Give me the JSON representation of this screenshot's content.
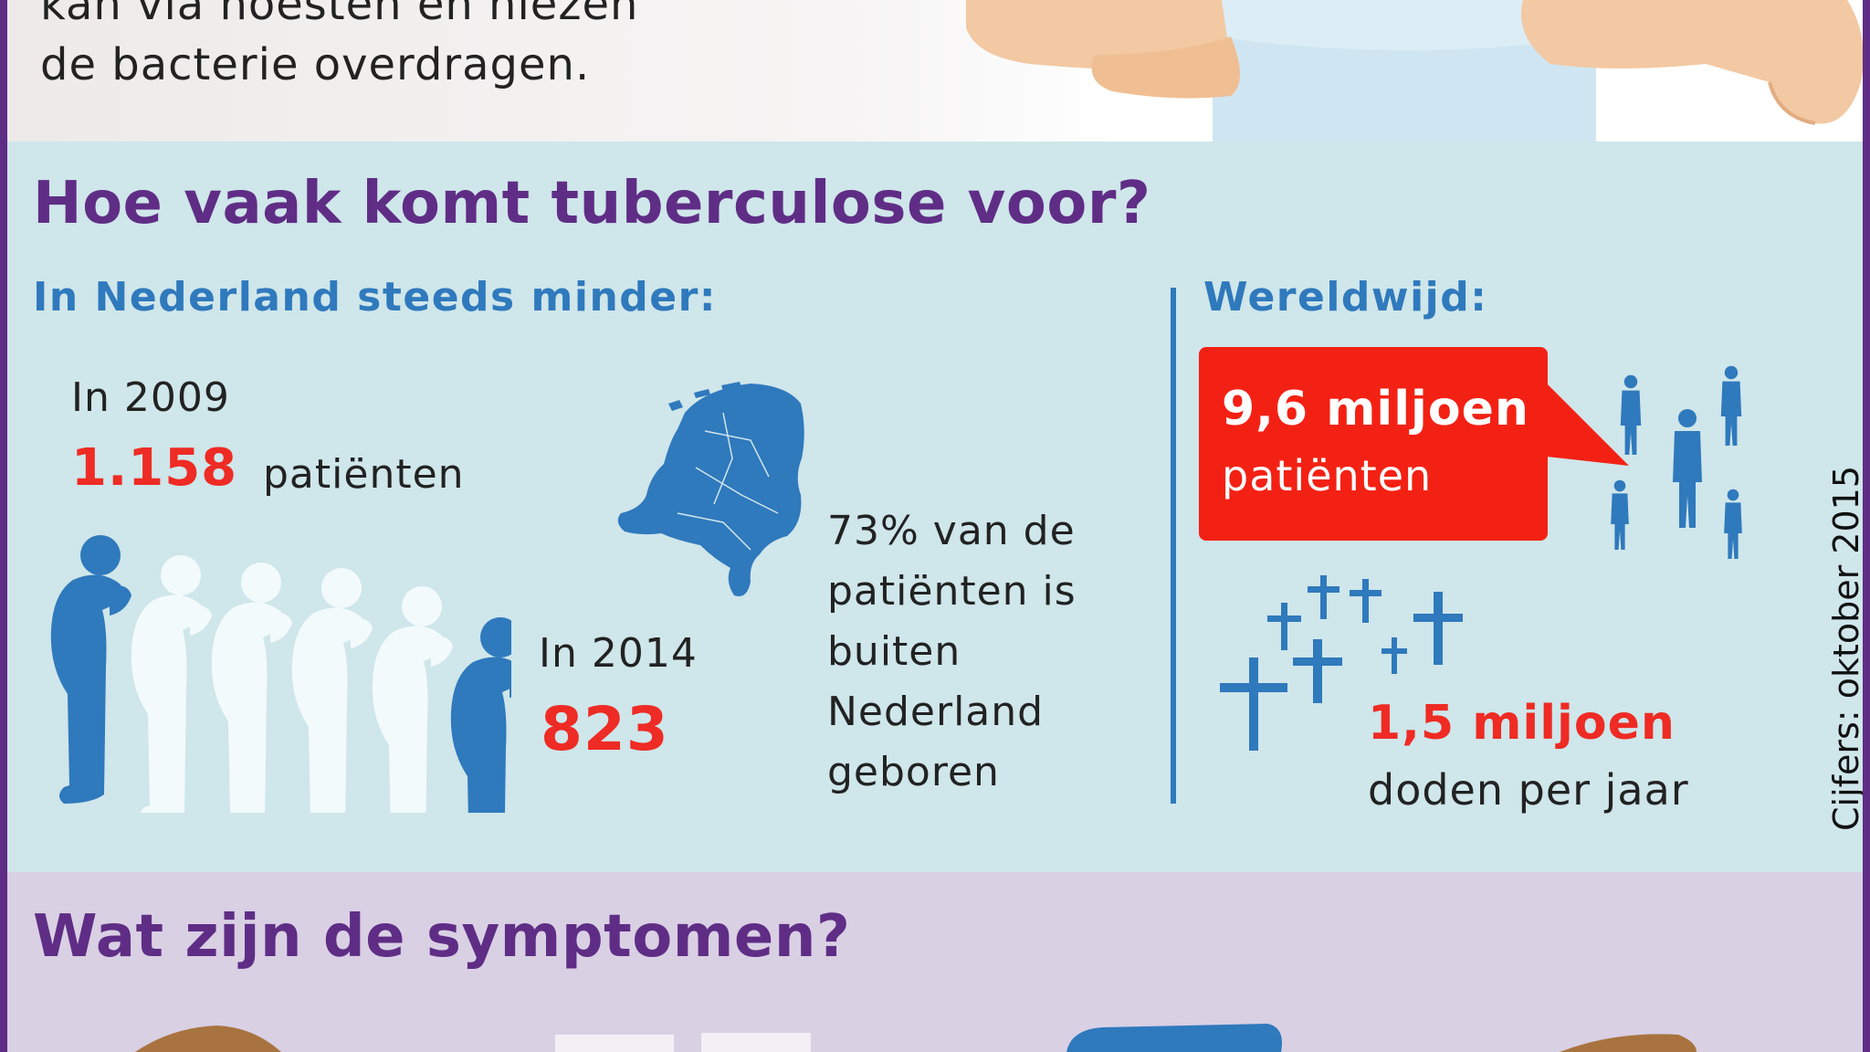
{
  "intro": {
    "line1": "kan via hoesten en niezen",
    "line2": "de bacterie overdragen."
  },
  "frequency": {
    "title": "Hoe vaak komt tuberculose voor?",
    "netherlands": {
      "heading": "In Nederland steeds minder:",
      "year_2009_label": "In 2009",
      "count_2009": "1.158",
      "patients_word": "patiënten",
      "year_2014_label": "In 2014",
      "count_2014": "823",
      "born_abroad_lines": [
        "73% van de",
        "patiënten is",
        "buiten",
        "Nederland",
        "geboren"
      ]
    },
    "worldwide": {
      "heading": "Wereldwijd:",
      "patients_number": "9,6 miljoen",
      "patients_label": "patiënten",
      "deaths_number": "1,5 miljoen",
      "deaths_label": "doden per jaar"
    },
    "source_note": "Cijfers: oktober 2015"
  },
  "symptoms": {
    "title": "Wat zijn de symptomen?"
  },
  "colors": {
    "accent_purple": "#5f2d85",
    "accent_blue": "#2f79bd",
    "accent_red": "#ee2b24",
    "bubble_red": "#f32114",
    "panel_blue": "#cfe6ea",
    "panel_lilac": "#d9d0e4"
  },
  "icons": {
    "people": "coughing-person-icon",
    "map": "netherlands-map-icon",
    "crowd": "crowd-icon",
    "crosses": "cross-icon"
  }
}
